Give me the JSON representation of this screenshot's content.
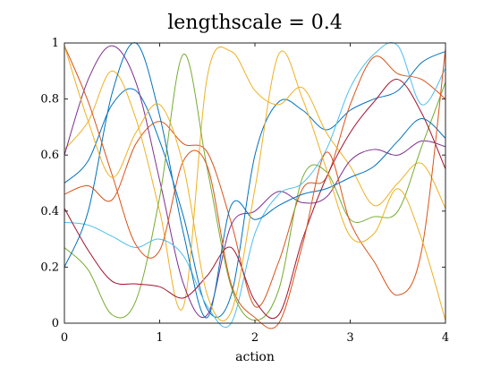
{
  "chart_data": {
    "type": "line",
    "title": "lengthscale = 0.4",
    "xlabel": "action",
    "ylabel": "",
    "xlim": [
      0,
      4
    ],
    "ylim": [
      0,
      1
    ],
    "xticks": [
      0,
      1,
      2,
      3,
      4
    ],
    "xtick_labels": [
      "0",
      "1",
      "2",
      "3",
      "4"
    ],
    "yticks": [
      0,
      0.2,
      0.4,
      0.6,
      0.8,
      1
    ],
    "ytick_labels": [
      "0",
      "0.2",
      "0.4",
      "0.6",
      "0.8",
      "1"
    ],
    "grid": false,
    "x": [
      0,
      0.25,
      0.5,
      0.75,
      1.0,
      1.25,
      1.5,
      1.75,
      2.0,
      2.25,
      2.5,
      2.75,
      3.0,
      3.25,
      3.5,
      3.75,
      4.0
    ],
    "series": [
      {
        "color": "#0072BD",
        "values": [
          0.5,
          0.58,
          0.78,
          0.83,
          0.65,
          0.38,
          0.05,
          0.1,
          0.6,
          0.79,
          0.76,
          0.69,
          0.76,
          0.8,
          0.83,
          0.93,
          0.97
        ]
      },
      {
        "color": "#D95319",
        "values": [
          0.46,
          0.49,
          0.44,
          0.64,
          0.72,
          0.64,
          0.61,
          0.36,
          0.06,
          0.22,
          0.48,
          0.52,
          0.78,
          0.95,
          0.89,
          0.87,
          0.8
        ]
      },
      {
        "color": "#EDB120",
        "values": [
          0.62,
          0.72,
          0.9,
          0.73,
          0.4,
          0.06,
          0.88,
          0.97,
          0.83,
          0.78,
          0.84,
          0.68,
          0.56,
          0.42,
          0.5,
          0.57,
          0.41
        ]
      },
      {
        "color": "#7E2F8E",
        "values": [
          0.6,
          0.87,
          0.99,
          0.86,
          0.51,
          0.14,
          0.03,
          0.35,
          0.4,
          0.47,
          0.43,
          0.45,
          0.58,
          0.62,
          0.6,
          0.65,
          0.63
        ]
      },
      {
        "color": "#77AC30",
        "values": [
          0.27,
          0.19,
          0.03,
          0.08,
          0.45,
          0.96,
          0.55,
          0.13,
          0.01,
          0.12,
          0.52,
          0.54,
          0.37,
          0.38,
          0.4,
          0.63,
          0.86
        ]
      },
      {
        "color": "#4DBEEE",
        "values": [
          0.36,
          0.35,
          0.31,
          0.27,
          0.3,
          0.24,
          0.06,
          0.0,
          0.32,
          0.46,
          0.5,
          0.62,
          0.84,
          0.96,
          0.99,
          0.78,
          0.91
        ]
      },
      {
        "color": "#A2142F",
        "values": [
          0.41,
          0.26,
          0.15,
          0.14,
          0.13,
          0.09,
          0.17,
          0.27,
          0.08,
          0.03,
          0.3,
          0.52,
          0.68,
          0.79,
          0.87,
          0.75,
          0.55
        ]
      },
      {
        "color": "#0072BD",
        "values": [
          0.2,
          0.4,
          0.82,
          1.0,
          0.74,
          0.32,
          0.02,
          0.42,
          0.37,
          0.42,
          0.46,
          0.48,
          0.52,
          0.56,
          0.65,
          0.73,
          0.66
        ]
      },
      {
        "color": "#D95319",
        "values": [
          0.99,
          0.79,
          0.53,
          0.28,
          0.26,
          0.58,
          0.56,
          0.14,
          0.02,
          0.0,
          0.28,
          0.61,
          0.36,
          0.22,
          0.1,
          0.26,
          0.98
        ]
      },
      {
        "color": "#EDB120",
        "values": [
          0.99,
          0.72,
          0.52,
          0.68,
          0.78,
          0.56,
          0.1,
          0.04,
          0.48,
          0.96,
          0.8,
          0.55,
          0.31,
          0.32,
          0.48,
          0.3,
          0.01
        ]
      }
    ]
  }
}
